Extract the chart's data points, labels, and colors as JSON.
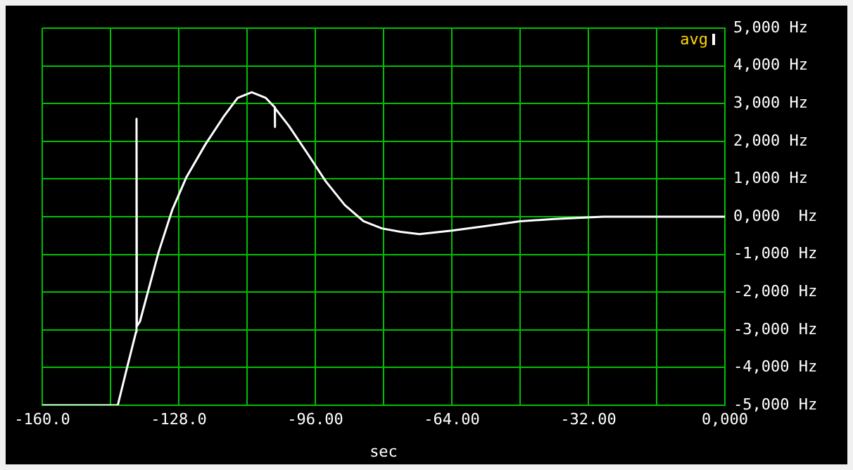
{
  "chart_data": {
    "type": "line",
    "xlabel": "sec",
    "legend": "top right",
    "grid": true,
    "marker": "none",
    "line_style": "solid",
    "xlim": [
      -160,
      0
    ],
    "ylim": [
      -5000,
      5000
    ],
    "xticks": [
      {
        "value": -160,
        "label": "-160.0"
      },
      {
        "value": -144,
        "label": null
      },
      {
        "value": -128,
        "label": "-128.0"
      },
      {
        "value": -112,
        "label": null
      },
      {
        "value": -96,
        "label": "-96.00"
      },
      {
        "value": -80,
        "label": null
      },
      {
        "value": -64,
        "label": "-64.00"
      },
      {
        "value": -48,
        "label": null
      },
      {
        "value": -32,
        "label": "-32.00"
      },
      {
        "value": -16,
        "label": null
      },
      {
        "value": 0,
        "label": "0,000"
      }
    ],
    "yticks": [
      {
        "value": -5000,
        "label": "-5,000 Hz"
      },
      {
        "value": -4000,
        "label": "-4,000 Hz"
      },
      {
        "value": -3000,
        "label": "-3,000 Hz"
      },
      {
        "value": -2000,
        "label": "-2,000 Hz"
      },
      {
        "value": -1000,
        "label": "-1,000 Hz"
      },
      {
        "value": 0,
        "label": "0,000  Hz"
      },
      {
        "value": 1000,
        "label": "1,000 Hz"
      },
      {
        "value": 2000,
        "label": "2,000 Hz"
      },
      {
        "value": 3000,
        "label": "3,000 Hz"
      },
      {
        "value": 4000,
        "label": "4,000 Hz"
      },
      {
        "value": 5000,
        "label": "5,000 Hz"
      }
    ],
    "series": [
      {
        "name": "avg",
        "color": "#ffffff",
        "x": [
          -160,
          -142.3,
          -140,
          -138.0,
          -137.9,
          -137.8,
          -137.1,
          -132.7,
          -129.5,
          -126.2,
          -121.8,
          -117.5,
          -114.2,
          -110.9,
          -107.6,
          -105.5,
          -105.5,
          -105.4,
          -102.2,
          -97.8,
          -93.5,
          -89.1,
          -84.7,
          -80.4,
          -76.0,
          -71.6,
          -64.0,
          -56.3,
          -48.0,
          -40.0,
          -28.5,
          0
        ],
        "values": [
          -5000,
          -5000,
          -3950,
          -3050,
          2600,
          -2900,
          -2780,
          -930,
          190,
          1050,
          1910,
          2650,
          3150,
          3300,
          3150,
          2900,
          2380,
          2880,
          2410,
          1670,
          930,
          310,
          -120,
          -310,
          -400,
          -460,
          -370,
          -250,
          -120,
          -60,
          0,
          0
        ]
      }
    ]
  }
}
